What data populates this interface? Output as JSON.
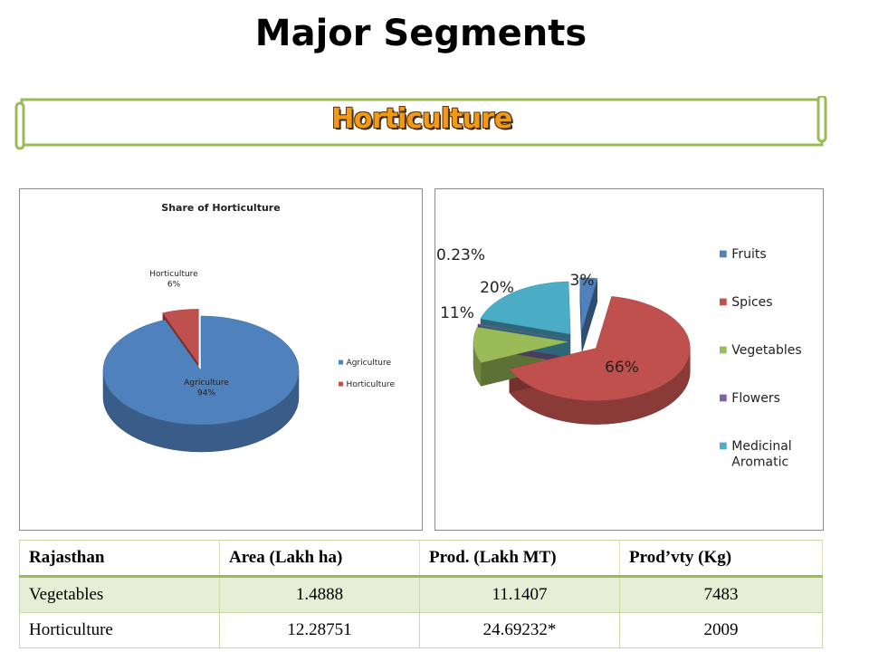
{
  "page_title": "Major Segments",
  "banner_text": "Horticulture",
  "chart_data": [
    {
      "type": "pie",
      "title": "Share of Horticulture",
      "categories": [
        "Agriculture",
        "Horticulture"
      ],
      "values": [
        94,
        6
      ],
      "data_labels": [
        "Agriculture\n94%",
        "Horticulture\n6%"
      ],
      "legend": [
        "Agriculture",
        "Horticulture"
      ],
      "legend_placement": "right",
      "colors": [
        "#4f81bd",
        "#c0504d"
      ],
      "style": "3d-exploded"
    },
    {
      "type": "pie",
      "title": "",
      "categories": [
        "Fruits",
        "Spices",
        "Vegetables",
        "Flowers",
        "Medicinal Aromatic"
      ],
      "values": [
        3,
        66,
        11,
        0.23,
        20
      ],
      "data_labels": [
        "3%",
        "66%",
        "11%",
        "0.23%",
        "20%"
      ],
      "legend": [
        "Fruits",
        "Spices",
        "Vegetables",
        "Flowers",
        "Medicinal Aromatic"
      ],
      "legend_placement": "right",
      "colors": [
        "#4f81bd",
        "#c0504d",
        "#9bbb59",
        "#8064a2",
        "#4bacc6"
      ],
      "style": "3d-exploded"
    }
  ],
  "table": {
    "headers": [
      "Rajasthan",
      "Area (Lakh ha)",
      "Prod. (Lakh MT)",
      "Prod’vty (Kg)"
    ],
    "rows": [
      [
        "Vegetables",
        "1.4888",
        "11.1407",
        "7483"
      ],
      [
        "Horticulture",
        "12.28751",
        "24.69232*",
        "2009"
      ]
    ]
  }
}
